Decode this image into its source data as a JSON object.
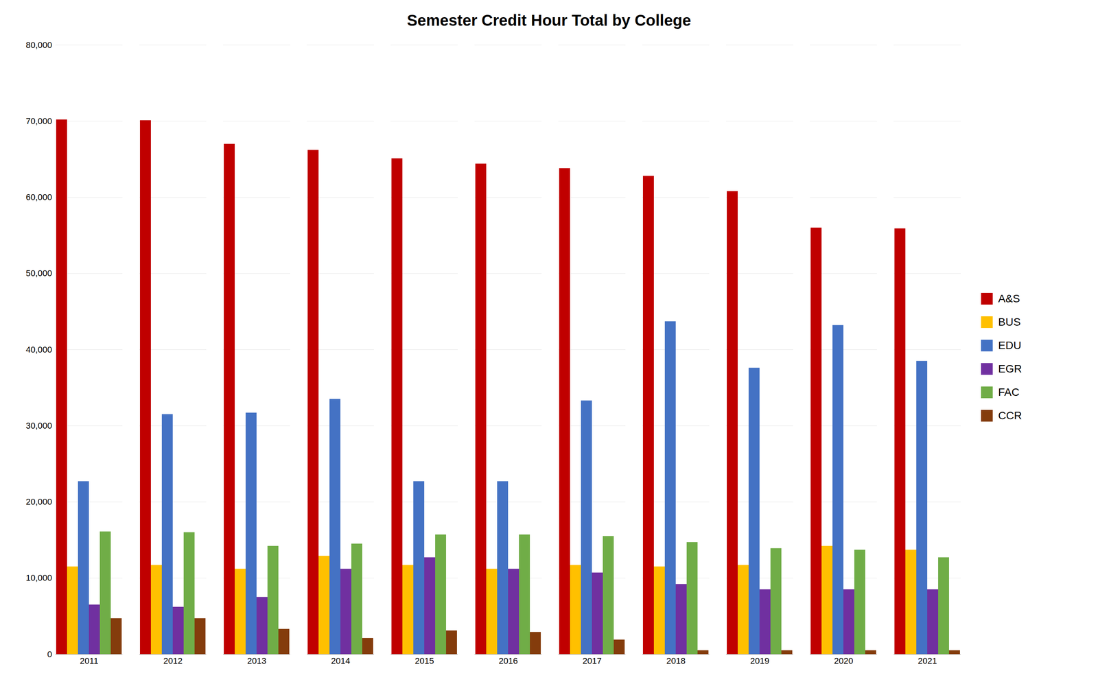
{
  "chart_data": {
    "type": "bar",
    "title": "Semester Credit Hour Total by College",
    "categories": [
      "2011",
      "2012",
      "2013",
      "2014",
      "2015",
      "2016",
      "2017",
      "2018",
      "2019",
      "2020",
      "2021"
    ],
    "series": [
      {
        "name": "A&S",
        "color": "#C00000",
        "values": [
          70200,
          70100,
          67000,
          66200,
          65100,
          64400,
          63800,
          62800,
          60800,
          56000,
          55900
        ]
      },
      {
        "name": "BUS",
        "color": "#FFC000",
        "values": [
          11500,
          11700,
          11200,
          12900,
          11700,
          11200,
          11700,
          11500,
          11700,
          14200,
          13700
        ]
      },
      {
        "name": "EDU",
        "color": "#4472C4",
        "values": [
          22700,
          31500,
          31700,
          33500,
          22700,
          22700,
          33300,
          43700,
          37600,
          43200,
          38500
        ]
      },
      {
        "name": "EGR",
        "color": "#7030A0",
        "values": [
          6500,
          6200,
          7500,
          11200,
          12700,
          11200,
          10700,
          9200,
          8500,
          8500,
          8500
        ]
      },
      {
        "name": "FAC",
        "color": "#70AD47",
        "values": [
          16100,
          16000,
          14200,
          14500,
          15700,
          15700,
          15500,
          14700,
          13900,
          13700,
          12700
        ]
      },
      {
        "name": "CCR",
        "color": "#843C0C",
        "values": [
          4700,
          4700,
          3300,
          2100,
          3100,
          2900,
          1900,
          500,
          500,
          500,
          500
        ]
      }
    ],
    "ylim": [
      0,
      80000
    ],
    "yticks": [
      0,
      {
        "value": 10000,
        "label": "10,000"
      },
      {
        "value": 20000,
        "label": "20,000"
      },
      {
        "value": 30000,
        "label": "30,000"
      },
      {
        "value": 40000,
        "label": "40,000"
      },
      {
        "value": 50000,
        "label": "50,000"
      },
      {
        "value": 60000,
        "label": "60,000"
      },
      {
        "value": 70000,
        "label": "70,000"
      },
      {
        "value": 80000,
        "label": "80,000"
      }
    ],
    "grid": true,
    "legend": "right"
  }
}
